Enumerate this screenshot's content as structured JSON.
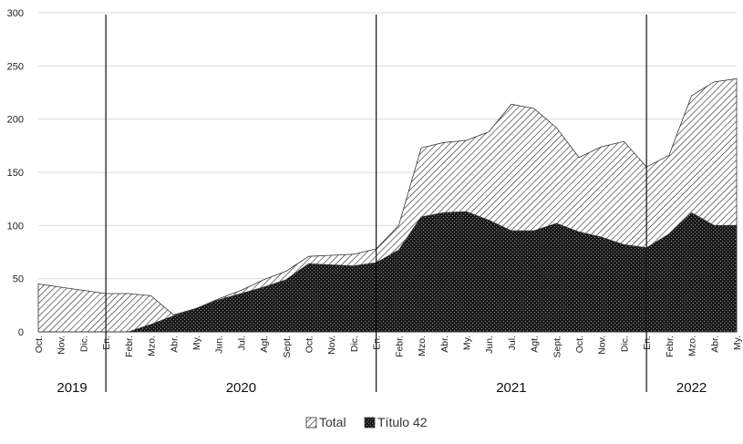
{
  "chart_data": {
    "type": "area",
    "title": "",
    "xlabel": "",
    "ylabel": "",
    "ylim": [
      0,
      300
    ],
    "yticks": [
      0,
      50,
      100,
      150,
      200,
      250,
      300
    ],
    "grid": "horizontal",
    "legend_position": "bottom-center",
    "categories": [
      "Oct.",
      "Nov.",
      "Dic.",
      "En.",
      "Febr.",
      "Mzo.",
      "Abr.",
      "My.",
      "Jun.",
      "Jul.",
      "Agt.",
      "Sept.",
      "Oct.",
      "Nov.",
      "Dic.",
      "En.",
      "Febr.",
      "Mzo.",
      "Abr.",
      "My.",
      "Jun.",
      "Jul.",
      "Agt.",
      "Sept.",
      "Oct.",
      "Nov.",
      "Dic.",
      "En.",
      "Febr.",
      "Mzo.",
      "Abr.",
      "My."
    ],
    "years": [
      {
        "label": "2019",
        "start": 0,
        "end": 3
      },
      {
        "label": "2020",
        "start": 3,
        "end": 15
      },
      {
        "label": "2021",
        "start": 15,
        "end": 27
      },
      {
        "label": "2022",
        "start": 27,
        "end": 31
      }
    ],
    "year_dividers": [
      3,
      15,
      27
    ],
    "series": [
      {
        "name": "Total",
        "pattern": "diagonal-hatch",
        "values": [
          45,
          42,
          39,
          36,
          36,
          34,
          16,
          22,
          31,
          39,
          49,
          57,
          71,
          72,
          73,
          78,
          100,
          173,
          178,
          180,
          188,
          214,
          210,
          192,
          164,
          174,
          179,
          155,
          166,
          222,
          235,
          238
        ]
      },
      {
        "name": "Título 42",
        "pattern": "crosshatch",
        "values": [
          0,
          0,
          0,
          0,
          0,
          7,
          15,
          22,
          30,
          36,
          42,
          49,
          64,
          63,
          62,
          65,
          77,
          108,
          112,
          113,
          105,
          95,
          95,
          102,
          94,
          89,
          82,
          79,
          92,
          112,
          100,
          100
        ]
      }
    ]
  }
}
